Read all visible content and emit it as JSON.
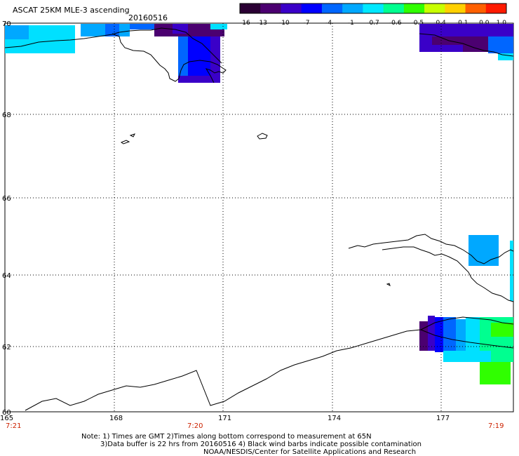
{
  "header": {
    "title": "ASCAT 25KM MLE-3 ascending",
    "date": "20160516"
  },
  "colorbar": {
    "labels": [
      "-16",
      "-13",
      "-10",
      "-7",
      "-4",
      "-1",
      "-0.7",
      "-0.6",
      "-0.5",
      "-0.4",
      "-0.1",
      "0.0",
      "1.0"
    ],
    "colors": [
      "#2a0033",
      "#4b0070",
      "#3a00c8",
      "#0000ff",
      "#0066ff",
      "#00a8ff",
      "#00e8ff",
      "#00ff90",
      "#30ff00",
      "#c8ff00",
      "#ffd000",
      "#ff6000",
      "#ff1a00"
    ]
  },
  "map": {
    "lat_labels": [
      "70",
      "68",
      "66",
      "64",
      "62",
      "60"
    ],
    "lon_labels": [
      "165",
      "168",
      "171",
      "174",
      "177"
    ],
    "time_labels": [
      "7:21",
      "7:20",
      "7:19"
    ]
  },
  "notes": {
    "line1": "Note: 1) Times are GMT 2)Times along bottom correspond to measurement at 65N",
    "line2": "3)Data buffer is 22 hrs from 20160516 4) Black wind barbs indicate possible contamination",
    "line3": "NOAA/NESDIS/Center for Satellite Applications and Research"
  }
}
